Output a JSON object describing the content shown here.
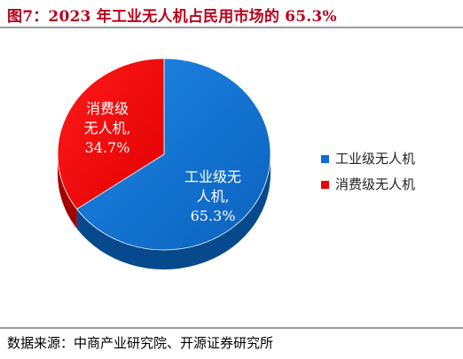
{
  "title": "图7：2023 年工业无人机占民用市场的 65.3%",
  "source": "数据来源：中商产业研究院、开源证券研究所",
  "colors": {
    "title": "#b8001b",
    "industrial": "#0a6fd1",
    "industrial_side": "#06498c",
    "consumer": "#f00000",
    "consumer_side": "#a30000"
  },
  "chart_data": {
    "type": "pie",
    "title": "",
    "slices": [
      {
        "name": "工业级无人机",
        "value": 65.3,
        "label_lines": [
          "工业级无",
          "人机,",
          "65.3%"
        ],
        "color": "#0a6fd1"
      },
      {
        "name": "消费级无人机",
        "value": 34.7,
        "label_lines": [
          "消费级",
          "无人机,",
          "34.7%"
        ],
        "color": "#f00000"
      }
    ],
    "legend": {
      "placement": "right",
      "entries": [
        "工业级无人机",
        "消费级无人机"
      ]
    }
  }
}
